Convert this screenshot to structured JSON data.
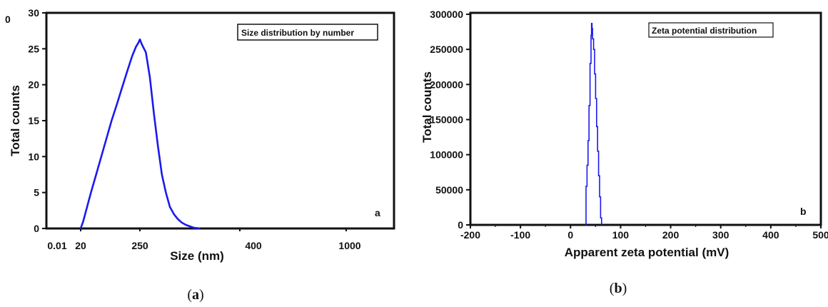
{
  "chart_data": [
    {
      "type": "line",
      "panel_label": "a",
      "caption_letter": "a",
      "legend": "Size distribution by number",
      "xlabel": "Size (nm)",
      "ylabel": "Total counts",
      "stray_label": "0",
      "ylim": [
        0,
        30
      ],
      "y_ticks": [
        0,
        5,
        10,
        15,
        20,
        25,
        30
      ],
      "x_tick_labels": [
        "0.01",
        "20",
        "250",
        "400",
        "1000"
      ],
      "grid": false,
      "color": "#1a1aee",
      "series": [
        {
          "x": [
            20,
            30,
            45,
            60,
            80,
            100,
            120,
            140,
            160,
            180,
            200,
            220,
            235,
            245,
            250,
            255,
            265,
            275,
            285,
            295,
            305,
            315,
            325,
            335,
            345,
            355,
            365,
            375,
            385,
            395,
            400
          ],
          "y": [
            0,
            1.0,
            3.0,
            5.0,
            7.5,
            10.0,
            12.5,
            15.0,
            17.2,
            19.5,
            21.8,
            24.0,
            25.3,
            25.9,
            26.3,
            25.6,
            24.5,
            21.0,
            16.0,
            11.5,
            7.5,
            5.0,
            3.0,
            2.0,
            1.3,
            0.8,
            0.5,
            0.3,
            0.1,
            0.05,
            0
          ]
        }
      ]
    },
    {
      "type": "line",
      "panel_label": "b",
      "caption_letter": "b",
      "legend": "Zeta potential distribution",
      "xlabel": "Apparent zeta potential (mV)",
      "ylabel": "Total counts",
      "xlim": [
        -200,
        500
      ],
      "x_ticks": [
        -200,
        -100,
        0,
        100,
        200,
        300,
        400,
        500
      ],
      "ylim": [
        0,
        300000
      ],
      "y_ticks": [
        0,
        50000,
        100000,
        150000,
        200000,
        250000,
        300000
      ],
      "grid": false,
      "color": "#1a1aee",
      "series": [
        {
          "x": [
            30,
            31,
            33,
            35,
            37,
            39,
            41,
            42,
            43,
            44,
            46,
            48,
            50,
            52,
            54,
            56,
            58,
            60,
            62
          ],
          "y": [
            0,
            55000,
            85000,
            120000,
            170000,
            230000,
            270000,
            287000,
            280000,
            265000,
            250000,
            215000,
            180000,
            140000,
            105000,
            70000,
            40000,
            10000,
            0
          ]
        }
      ]
    }
  ]
}
